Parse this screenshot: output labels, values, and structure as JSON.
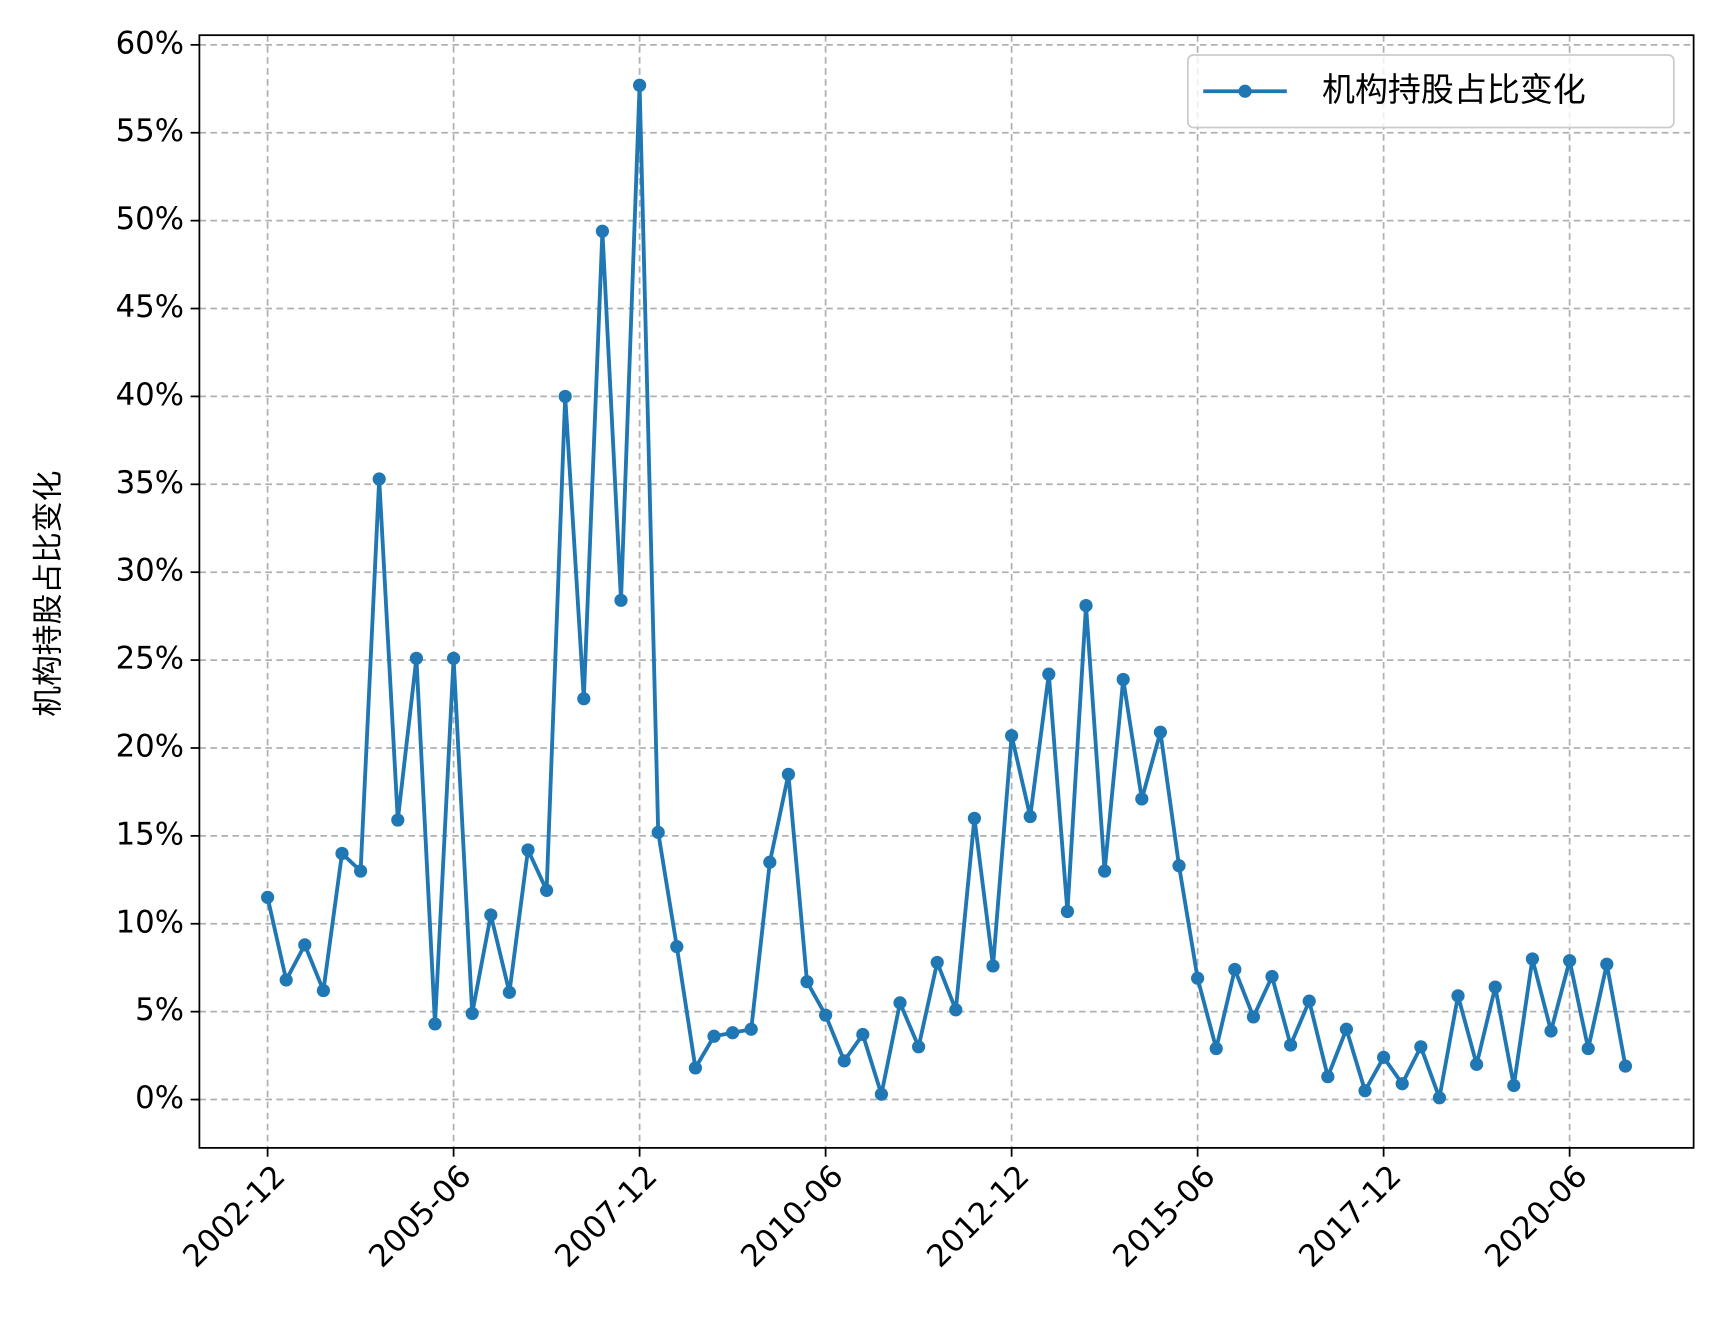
{
  "chart_data": {
    "type": "line",
    "ylabel": "机构持股占比变化",
    "x": [
      "2002-12",
      "2003-03",
      "2003-06",
      "2003-09",
      "2003-12",
      "2004-03",
      "2004-06",
      "2004-09",
      "2004-12",
      "2005-03",
      "2005-06",
      "2005-09",
      "2005-12",
      "2006-03",
      "2006-06",
      "2006-09",
      "2006-12",
      "2007-03",
      "2007-06",
      "2007-09",
      "2007-12",
      "2008-03",
      "2008-06",
      "2008-09",
      "2008-12",
      "2009-03",
      "2009-06",
      "2009-09",
      "2009-12",
      "2010-03",
      "2010-06",
      "2010-09",
      "2010-12",
      "2011-03",
      "2011-06",
      "2011-09",
      "2011-12",
      "2012-03",
      "2012-06",
      "2012-09",
      "2012-12",
      "2013-03",
      "2013-06",
      "2013-09",
      "2013-12",
      "2014-03",
      "2014-06",
      "2014-09",
      "2014-12",
      "2015-03",
      "2015-06",
      "2015-09",
      "2015-12",
      "2016-03",
      "2016-06",
      "2016-09",
      "2016-12",
      "2017-03",
      "2017-06",
      "2017-09",
      "2017-12",
      "2018-03",
      "2018-06",
      "2018-09",
      "2018-12",
      "2019-03",
      "2019-06",
      "2019-09",
      "2019-12",
      "2020-03",
      "2020-06",
      "2020-09",
      "2020-12",
      "2021-03"
    ],
    "series": [
      {
        "name": "机构持股占比变化",
        "color": "#1f77b4",
        "values": [
          11.5,
          6.8,
          8.8,
          6.2,
          14.0,
          13.0,
          35.3,
          15.9,
          25.1,
          4.3,
          25.1,
          4.9,
          10.5,
          6.1,
          14.2,
          11.9,
          40.0,
          22.8,
          49.4,
          28.4,
          57.7,
          15.2,
          8.7,
          1.8,
          3.6,
          3.8,
          4.0,
          13.5,
          18.5,
          6.7,
          4.8,
          2.2,
          3.7,
          0.3,
          5.5,
          3.0,
          7.8,
          5.1,
          16.0,
          7.6,
          20.7,
          16.1,
          24.2,
          10.7,
          28.1,
          13.0,
          23.9,
          17.1,
          20.9,
          13.3,
          6.9,
          2.9,
          7.4,
          4.7,
          7.0,
          3.1,
          5.6,
          1.3,
          4.0,
          0.5,
          2.4,
          0.9,
          3.0,
          0.1,
          5.9,
          2.0,
          6.4,
          0.8,
          8.0,
          3.9,
          7.9,
          2.9,
          7.7,
          1.9
        ]
      }
    ],
    "xlim": [
      "2002-01",
      "2022-02"
    ],
    "xticks": [
      "2002-12",
      "2005-06",
      "2007-12",
      "2010-06",
      "2012-12",
      "2015-06",
      "2017-12",
      "2020-06"
    ],
    "ylim": [
      -2.75,
      60.55
    ],
    "yticks": [
      {
        "value": 0,
        "label": "0%"
      },
      {
        "value": 5,
        "label": "5%"
      },
      {
        "value": 10,
        "label": "10%"
      },
      {
        "value": 15,
        "label": "15%"
      },
      {
        "value": 20,
        "label": "20%"
      },
      {
        "value": 25,
        "label": "25%"
      },
      {
        "value": 30,
        "label": "30%"
      },
      {
        "value": 35,
        "label": "35%"
      },
      {
        "value": 40,
        "label": "40%"
      },
      {
        "value": 45,
        "label": "45%"
      },
      {
        "value": 50,
        "label": "50%"
      },
      {
        "value": 55,
        "label": "55%"
      },
      {
        "value": 60,
        "label": "60%"
      }
    ],
    "grid": true,
    "legend": "upper right"
  }
}
